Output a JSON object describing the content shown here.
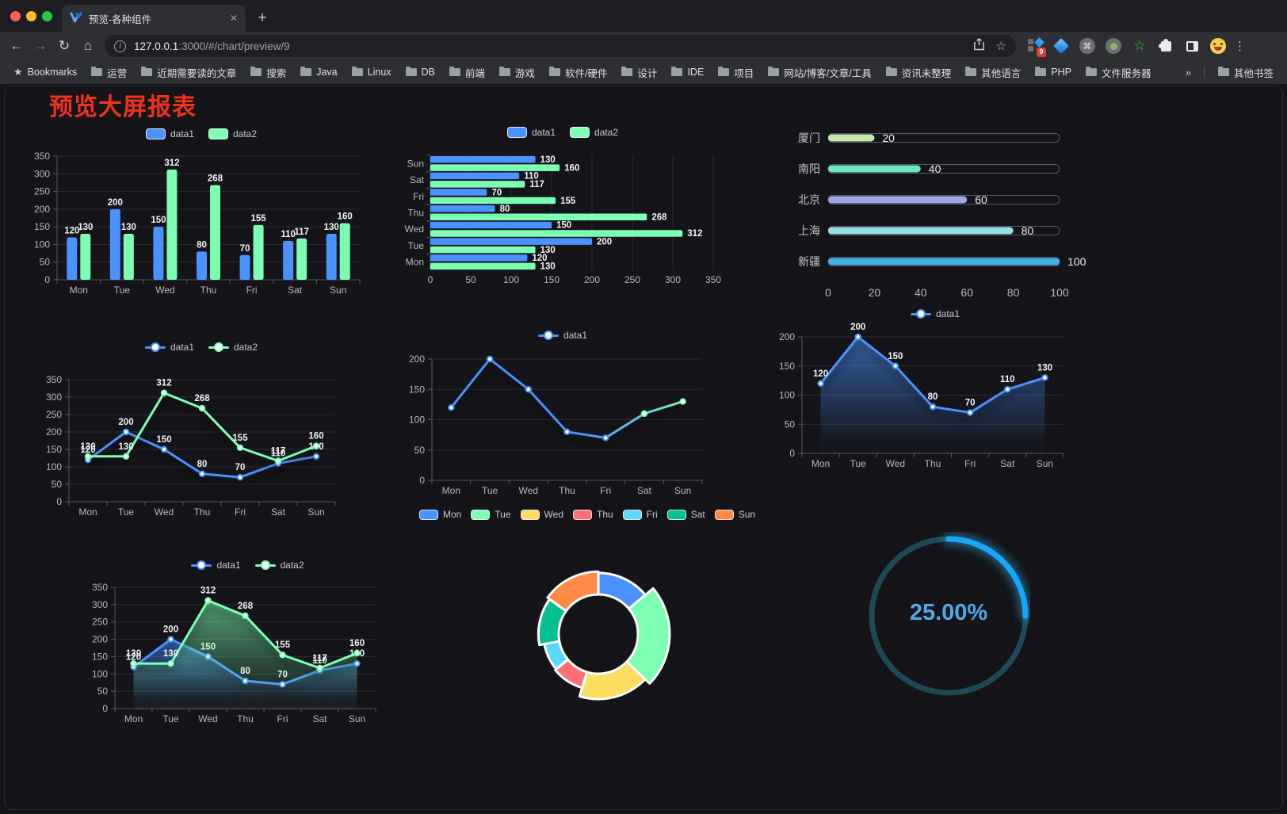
{
  "browser": {
    "tab": {
      "title": "预览-各种组件",
      "close_glyph": "✕",
      "new_tab_glyph": "+"
    },
    "nav": {
      "back_glyph": "←",
      "forward_glyph": "→",
      "reload_glyph": "↻",
      "home_glyph": "⌂"
    },
    "url": {
      "host": "127.0.0.1",
      "path": ":3000/#/chart/preview/9"
    },
    "extension_badge": "9",
    "menu_glyph": "⋮",
    "bookmarks_label": "Bookmarks",
    "bookmarks": [
      "运营",
      "近期需要读的文章",
      "搜索",
      "Java",
      "Linux",
      "DB",
      "前端",
      "游戏",
      "软件/硬件",
      "设计",
      "IDE",
      "项目",
      "网站/博客/文章/工具",
      "资讯未整理",
      "其他语言",
      "PHP",
      "文件服务器"
    ],
    "bookmarks_overflow_glyph": "»",
    "other_bookmarks_label": "其他书签"
  },
  "page": {
    "title": "预览大屏报表",
    "title_color": "#f0321b",
    "background": "#141419"
  },
  "palette": {
    "blue": "#4992ff",
    "green": "#7cffb2",
    "axis_text": "#b6b9c0",
    "value_text": "#f2f4f7",
    "grid": "#2c2d35",
    "axis_line": "#565a66"
  },
  "chart_data": [
    {
      "type": "bar",
      "orientation": "vertical",
      "legend": [
        "data1",
        "data2"
      ],
      "legend_pos": "top",
      "categories": [
        "Mon",
        "Tue",
        "Wed",
        "Thu",
        "Fri",
        "Sat",
        "Sun"
      ],
      "series": [
        {
          "name": "data1",
          "color": "#4992ff",
          "values": [
            120,
            200,
            150,
            80,
            70,
            110,
            130
          ]
        },
        {
          "name": "data2",
          "color": "#7cffb2",
          "values": [
            130,
            130,
            312,
            268,
            155,
            117,
            160
          ]
        }
      ],
      "ylim": [
        0,
        350
      ],
      "ytick": 50,
      "grid": true,
      "value_labels": true
    },
    {
      "type": "bar",
      "orientation": "horizontal",
      "legend": [
        "data1",
        "data2"
      ],
      "legend_pos": "top",
      "categories_top_to_bottom": [
        "Sun",
        "Sat",
        "Fri",
        "Thu",
        "Wed",
        "Tue",
        "Mon"
      ],
      "series": [
        {
          "name": "data1",
          "color": "#4992ff",
          "values_top_to_bottom": [
            130,
            110,
            70,
            80,
            150,
            200,
            120
          ]
        },
        {
          "name": "data2",
          "color": "#7cffb2",
          "values_top_to_bottom": [
            160,
            117,
            155,
            268,
            312,
            130,
            130
          ]
        }
      ],
      "xlim": [
        0,
        350
      ],
      "xtick": 50,
      "grid": true,
      "value_labels": true
    },
    {
      "type": "bar",
      "subtype": "progress",
      "xlim": [
        0,
        100
      ],
      "xticks": [
        0,
        20,
        40,
        60,
        80,
        100
      ],
      "items": [
        {
          "label": "厦门",
          "value": 20,
          "color": "#c4ebad"
        },
        {
          "label": "南阳",
          "value": 40,
          "color": "#6be6c1"
        },
        {
          "label": "北京",
          "value": 60,
          "color": "#a0a7e6"
        },
        {
          "label": "上海",
          "value": 80,
          "color": "#96dee8"
        },
        {
          "label": "新疆",
          "value": 100,
          "color": "#3fb1e3"
        }
      ]
    },
    {
      "type": "line",
      "legend": [
        "data1",
        "data2"
      ],
      "legend_pos": "top",
      "categories": [
        "Mon",
        "Tue",
        "Wed",
        "Thu",
        "Fri",
        "Sat",
        "Sun"
      ],
      "series": [
        {
          "name": "data1",
          "color": "#4992ff",
          "values": [
            120,
            200,
            150,
            80,
            70,
            110,
            130
          ]
        },
        {
          "name": "data2",
          "color": "#7cffb2",
          "values": [
            130,
            130,
            312,
            268,
            155,
            117,
            160
          ]
        }
      ],
      "ylim": [
        0,
        350
      ],
      "ytick": 50,
      "grid": true,
      "value_labels": true
    },
    {
      "type": "line",
      "legend": [
        "data1"
      ],
      "legend_pos": "top",
      "categories": [
        "Mon",
        "Tue",
        "Wed",
        "Thu",
        "Fri",
        "Sat",
        "Sun"
      ],
      "series": [
        {
          "name": "data1",
          "gradient": [
            "#4992ff",
            "#7cffb2"
          ],
          "color": "#4992ff",
          "values": [
            120,
            200,
            150,
            80,
            70,
            110,
            130
          ]
        }
      ],
      "ylim": [
        0,
        200
      ],
      "ytick": 50,
      "grid": true,
      "value_labels": false
    },
    {
      "type": "area",
      "legend": [
        "data1"
      ],
      "legend_pos": "top",
      "categories": [
        "Mon",
        "Tue",
        "Wed",
        "Thu",
        "Fri",
        "Sat",
        "Sun"
      ],
      "series": [
        {
          "name": "data1",
          "color": "#4992ff",
          "fill": true,
          "values": [
            120,
            200,
            150,
            80,
            70,
            110,
            130
          ]
        }
      ],
      "ylim": [
        0,
        200
      ],
      "ytick": 50,
      "grid": true,
      "value_labels": true
    },
    {
      "type": "area",
      "legend": [
        "data1",
        "data2"
      ],
      "legend_pos": "top",
      "categories": [
        "Mon",
        "Tue",
        "Wed",
        "Thu",
        "Fri",
        "Sat",
        "Sun"
      ],
      "series": [
        {
          "name": "data1",
          "color": "#4992ff",
          "fill": true,
          "values": [
            120,
            200,
            150,
            80,
            70,
            110,
            130
          ]
        },
        {
          "name": "data2",
          "color": "#7cffb2",
          "fill": true,
          "values": [
            130,
            130,
            312,
            268,
            155,
            117,
            160
          ]
        }
      ],
      "ylim": [
        0,
        350
      ],
      "ytick": 50,
      "grid": true,
      "value_labels": true
    },
    {
      "type": "pie",
      "subtype": "rose-donut",
      "legend_pos": "top",
      "categories": [
        "Mon",
        "Tue",
        "Wed",
        "Thu",
        "Fri",
        "Sat",
        "Sun"
      ],
      "values": [
        120,
        200,
        150,
        80,
        70,
        110,
        130
      ],
      "colors": [
        "#4992ff",
        "#7cffb2",
        "#fddd60",
        "#ff6e76",
        "#58d9f9",
        "#05c091",
        "#ff8a45"
      ],
      "border_color": "#ffffff"
    },
    {
      "type": "gauge",
      "percent": 25,
      "center_label": "25.00%",
      "arc_color": "#16a7f7",
      "track_color": "#1d4a57",
      "text_color": "#4fa9e9"
    }
  ]
}
